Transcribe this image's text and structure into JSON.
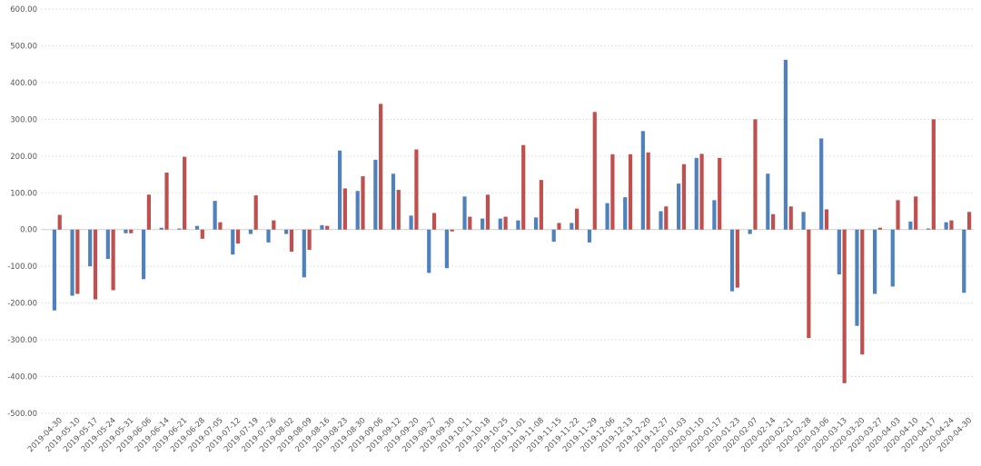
{
  "chart_data": {
    "type": "bar",
    "title": "",
    "xlabel": "",
    "ylabel": "",
    "ylim": [
      -500,
      600
    ],
    "y_ticks": [
      "600.00",
      "500.00",
      "400.00",
      "300.00",
      "200.00",
      "100.00",
      "0.00",
      "-100.00",
      "-200.00",
      "-300.00",
      "-400.00",
      "-500.00"
    ],
    "y_tick_values": [
      600,
      500,
      400,
      300,
      200,
      100,
      0,
      -100,
      -200,
      -300,
      -400,
      -500
    ],
    "grid": true,
    "legend": "none",
    "categories": [
      "2019-04-30",
      "2019-05-10",
      "2019-05-17",
      "2019-05-24",
      "2019-05-31",
      "2019-06-06",
      "2019-06-14",
      "2019-06-21",
      "2019-06-28",
      "2019-07-05",
      "2019-07-12",
      "2019-07-19",
      "2019-07-26",
      "2019-08-02",
      "2019-08-09",
      "2019-08-16",
      "2019-08-23",
      "2019-08-30",
      "2019-09-06",
      "2019-09-12",
      "2019-09-20",
      "2019-09-27",
      "2019-09-30",
      "2019-10-11",
      "2019-10-18",
      "2019-10-25",
      "2019-11-01",
      "2019-11-08",
      "2019-11-15",
      "2019-11-22",
      "2019-11-29",
      "2019-12-06",
      "2019-12-13",
      "2019-12-20",
      "2019-12-27",
      "2020-01-03",
      "2020-01-10",
      "2020-01-17",
      "2020-01-23",
      "2020-02-07",
      "2020-02-14",
      "2020-02-21",
      "2020-02-28",
      "2020-03-06",
      "2020-03-13",
      "2020-03-20",
      "2020-03-27",
      "2020-04-03",
      "2020-04-10",
      "2020-04-17",
      "2020-04-24",
      "2020-04-30"
    ],
    "series": [
      {
        "color": "#4f81bd",
        "values": [
          -220,
          -180,
          -100,
          -80,
          -10,
          -135,
          5,
          3,
          10,
          78,
          -68,
          -12,
          -35,
          -12,
          -130,
          12,
          215,
          105,
          190,
          152,
          38,
          -118,
          -105,
          90,
          30,
          30,
          25,
          33,
          -33,
          18,
          -35,
          72,
          88,
          268,
          50,
          125,
          195,
          80,
          -168,
          -12,
          152,
          462,
          48,
          248,
          -122,
          -262,
          -175,
          -155,
          22,
          3,
          20,
          -172
        ]
      },
      {
        "color": "#c0504d",
        "values": [
          40,
          -175,
          -190,
          -165,
          -10,
          95,
          155,
          198,
          -25,
          20,
          -38,
          93,
          25,
          -60,
          -55,
          10,
          112,
          145,
          342,
          108,
          218,
          45,
          -5,
          35,
          95,
          35,
          230,
          135,
          18,
          57,
          320,
          205,
          205,
          210,
          63,
          178,
          206,
          195,
          -158,
          300,
          42,
          63,
          -295,
          55,
          -418,
          -340,
          5,
          80,
          90,
          300,
          25,
          48
        ]
      }
    ]
  }
}
